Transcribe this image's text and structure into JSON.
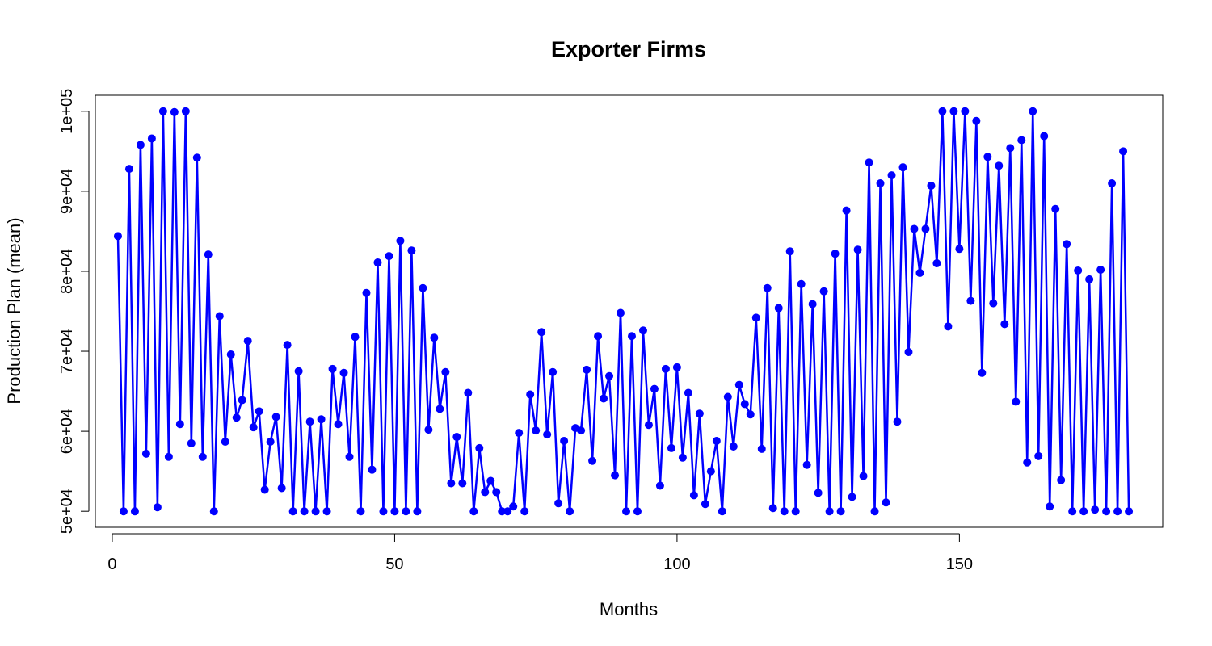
{
  "chart_data": {
    "type": "line",
    "title": "Exporter Firms",
    "xlabel": "Months",
    "ylabel": "Production Plan (mean)",
    "xlim": [
      -3,
      186
    ],
    "ylim": [
      48000,
      102000
    ],
    "xticks": [
      0,
      50,
      100,
      150
    ],
    "xtick_labels": [
      "0",
      "50",
      "100",
      "150"
    ],
    "yticks": [
      50000,
      60000,
      70000,
      80000,
      90000,
      100000
    ],
    "ytick_labels": [
      "5e+04",
      "6e+04",
      "7e+04",
      "8e+04",
      "9e+04",
      "1e+05"
    ],
    "grid": false,
    "series": [
      {
        "color": "#0000ff",
        "marker": "circle",
        "x": [
          1,
          2,
          3,
          4,
          5,
          6,
          7,
          8,
          9,
          10,
          11,
          12,
          13,
          14,
          15,
          16,
          17,
          18,
          19,
          20,
          21,
          22,
          23,
          24,
          25,
          26,
          27,
          28,
          29,
          30,
          31,
          32,
          33,
          34,
          35,
          36,
          37,
          38,
          39,
          40,
          41,
          42,
          43,
          44,
          45,
          46,
          47,
          48,
          49,
          50,
          51,
          52,
          53,
          54,
          55,
          56,
          57,
          58,
          59,
          60,
          61,
          62,
          63,
          64,
          65,
          66,
          67,
          68,
          69,
          70,
          71,
          72,
          73,
          74,
          75,
          76,
          77,
          78,
          79,
          80,
          81,
          82,
          83,
          84,
          85,
          86,
          87,
          88,
          89,
          90,
          91,
          92,
          93,
          94,
          95,
          96,
          97,
          98,
          99,
          100,
          101,
          102,
          103,
          104,
          105,
          106,
          107,
          108,
          109,
          110,
          111,
          112,
          113,
          114,
          115,
          116,
          117,
          118,
          119,
          120,
          121,
          122,
          123,
          124,
          125,
          126,
          127,
          128,
          129,
          130,
          131,
          132,
          133,
          134,
          135,
          136,
          137,
          138,
          139,
          140,
          141,
          142,
          143,
          144,
          145,
          146,
          147,
          148,
          149,
          150,
          151,
          152,
          153,
          154,
          155,
          156,
          157,
          158,
          159,
          160,
          161,
          162,
          163,
          164,
          165,
          166,
          167,
          168,
          169,
          170,
          171,
          172,
          173,
          174,
          175,
          176,
          177,
          178,
          179,
          180
        ],
        "y": [
          84400,
          50000,
          92800,
          50000,
          95800,
          57200,
          96600,
          50500,
          100000,
          56800,
          99900,
          60900,
          100000,
          58500,
          94200,
          56800,
          82100,
          50000,
          74400,
          58700,
          69600,
          61700,
          63900,
          71300,
          60500,
          62500,
          52700,
          58700,
          61800,
          52900,
          70800,
          50000,
          67500,
          50000,
          61200,
          50000,
          61500,
          50000,
          67800,
          60900,
          67300,
          56800,
          71800,
          50000,
          77300,
          55200,
          81100,
          50000,
          81900,
          50000,
          83800,
          50000,
          82600,
          50000,
          77900,
          60200,
          71700,
          62800,
          67400,
          53500,
          59300,
          53500,
          64800,
          50000,
          57900,
          52400,
          53800,
          52400,
          50000,
          50000,
          50600,
          59800,
          50000,
          64600,
          60100,
          72400,
          59600,
          67400,
          51000,
          58800,
          50000,
          60400,
          60100,
          67700,
          56300,
          71900,
          64100,
          66900,
          54500,
          74800,
          50000,
          71900,
          50000,
          72600,
          60800,
          65300,
          53200,
          67800,
          57900,
          68000,
          56700,
          64800,
          52000,
          62200,
          50900,
          55000,
          58800,
          50000,
          64300,
          58100,
          65800,
          63400,
          62100,
          74200,
          57800,
          77900,
          50400,
          75400,
          50000,
          82500,
          50000,
          78400,
          55800,
          75900,
          52300,
          77500,
          50000,
          82200,
          50000,
          87600,
          51800,
          82700,
          54400,
          93600,
          50000,
          91000,
          51100,
          92000,
          61200,
          93000,
          69900,
          85300,
          79800,
          85300,
          90700,
          81000,
          100000,
          73100,
          100000,
          82800,
          100000,
          76300,
          98800,
          67300,
          94300,
          76000,
          93200,
          73400,
          95400,
          63700,
          96400,
          56100,
          100000,
          56900,
          96900,
          50600,
          87800,
          53900,
          83400,
          50000,
          80100,
          50000,
          79000,
          50200,
          80200,
          50000,
          91000,
          50000,
          95000,
          50000
        ]
      }
    ]
  }
}
